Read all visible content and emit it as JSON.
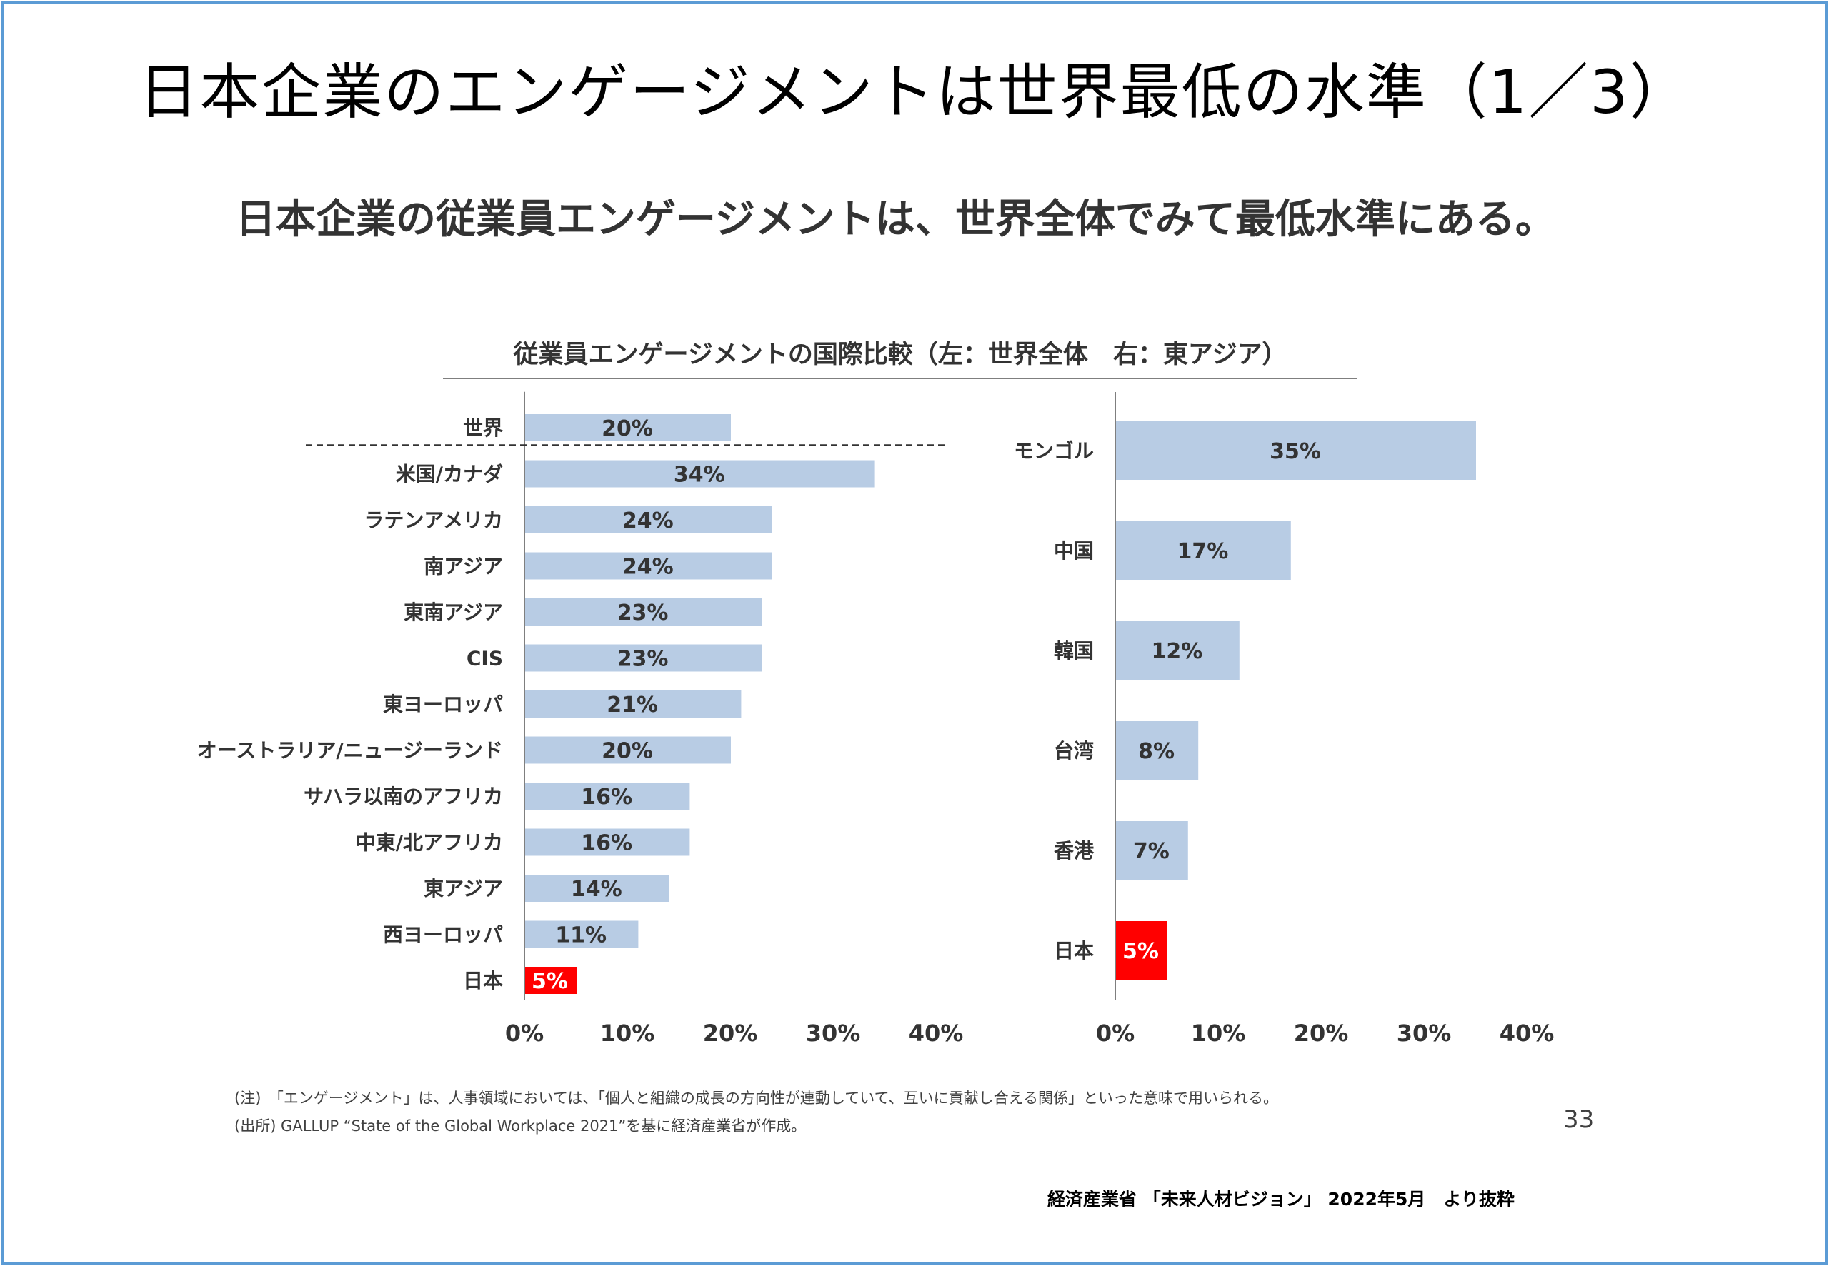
{
  "title": "日本企業のエンゲージメントは世界最低の水準（1／3）",
  "subtitle": "日本企業の従業員エンゲージメントは、世界全体でみて最低水準にある。",
  "chart_heading": "従業員エンゲージメントの国際比較（左：世界全体　右：東アジア）",
  "notes": {
    "note": "(注)　「エンゲージメント」は、人事領域においては、「個人と組織の成長の方向性が連動していて、互いに貢献し合える関係」といった意味で用いられる。",
    "source": "(出所) GALLUP “State of the Global Workplace 2021”を基に経済産業省が作成。"
  },
  "page_number": "33",
  "attribution": "経済産業省 「未来人材ビジョン」 2022年5月　より抜粋",
  "colors": {
    "bar": "#b8cce4",
    "highlight": "#ff0000",
    "frame": "#5b9bd5"
  },
  "chart_data": [
    {
      "type": "bar",
      "orientation": "horizontal",
      "categories": [
        "世界",
        "米国/カナダ",
        "ラテンアメリカ",
        "南アジア",
        "東南アジア",
        "CIS",
        "東ヨーロッパ",
        "オーストラリア/ニュージーランド",
        "サハラ以南のアフリカ",
        "中東/北アフリカ",
        "東アジア",
        "西ヨーロッパ",
        "日本"
      ],
      "values": [
        20,
        34,
        24,
        24,
        23,
        23,
        21,
        20,
        16,
        16,
        14,
        11,
        5
      ],
      "value_labels": [
        "20%",
        "34%",
        "24%",
        "24%",
        "23%",
        "23%",
        "21%",
        "20%",
        "16%",
        "16%",
        "14%",
        "11%",
        "5%"
      ],
      "highlight": "日本",
      "separator_after": "世界",
      "xlim": [
        0,
        40
      ],
      "xticks": [
        "0%",
        "10%",
        "20%",
        "30%",
        "40%"
      ]
    },
    {
      "type": "bar",
      "orientation": "horizontal",
      "categories": [
        "モンゴル",
        "中国",
        "韓国",
        "台湾",
        "香港",
        "日本"
      ],
      "values": [
        35,
        17,
        12,
        8,
        7,
        5
      ],
      "value_labels": [
        "35%",
        "17%",
        "12%",
        "8%",
        "7%",
        "5%"
      ],
      "highlight": "日本",
      "xlim": [
        0,
        40
      ],
      "xticks": [
        "0%",
        "10%",
        "20%",
        "30%",
        "40%"
      ]
    }
  ]
}
